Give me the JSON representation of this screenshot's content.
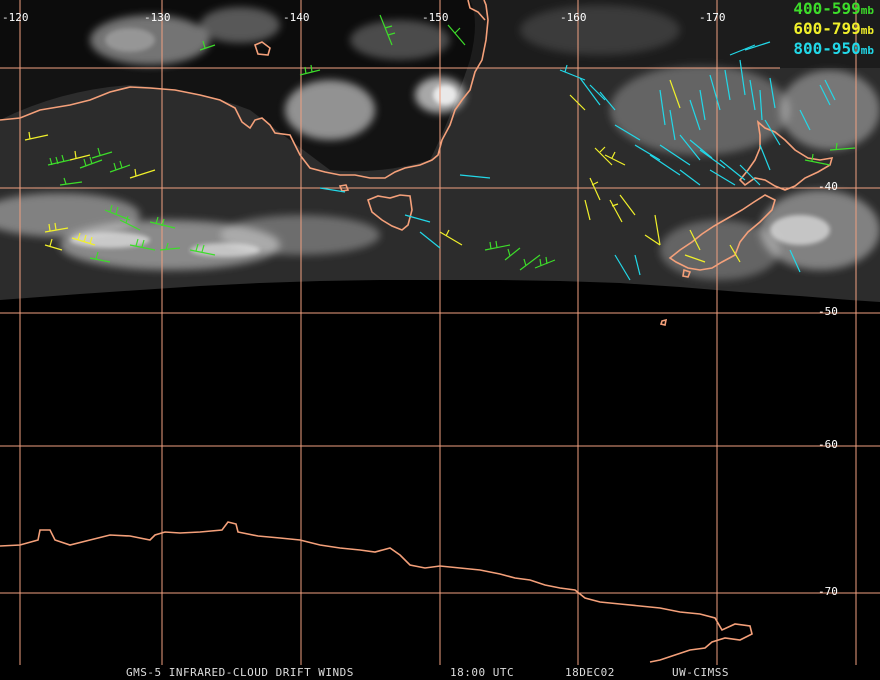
{
  "longitude_labels": [
    "-120",
    "-130",
    "-140",
    "-150",
    "-160",
    "-170"
  ],
  "latitude_labels": [
    "-40",
    "-50",
    "-60",
    "-70"
  ],
  "legend": [
    {
      "range": "400-599",
      "unit": "mb",
      "color": "#3ddc2a"
    },
    {
      "range": "600-799",
      "unit": "mb",
      "color": "#f0f02a"
    },
    {
      "range": "800-950",
      "unit": "mb",
      "color": "#22d8e8"
    }
  ],
  "footer": {
    "product": "GMS-5 INFRARED-CLOUD DRIFT WINDS",
    "time": "18:00 UTC",
    "date": "18DEC02",
    "source": "UW-CIMSS"
  },
  "colors": {
    "background": "#000000",
    "grid": "#f0a080",
    "coastline": "#f4a07a",
    "cloud": "#e6e6e6"
  }
}
